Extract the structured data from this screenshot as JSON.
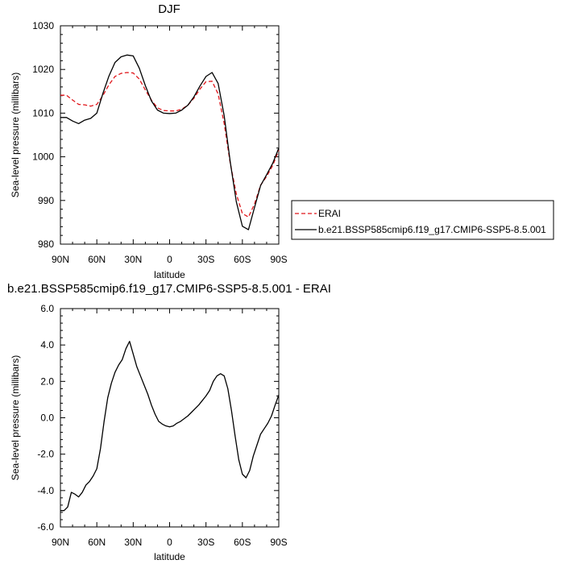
{
  "chart_data": [
    {
      "type": "line",
      "title": "DJF",
      "xlabel": "latitude",
      "ylabel": "Sea-level pressure (millibars)",
      "xlim": [
        90,
        -90
      ],
      "ylim": [
        980,
        1030
      ],
      "xticks": [
        90,
        60,
        30,
        0,
        -30,
        -60,
        -90
      ],
      "xtick_labels": [
        "90N",
        "60N",
        "30N",
        "0",
        "30S",
        "60S",
        "90S"
      ],
      "yticks": [
        980,
        990,
        1000,
        1010,
        1020,
        1030
      ],
      "ytick_labels": [
        "980",
        "990",
        "1000",
        "1010",
        "1020",
        "1030"
      ],
      "grid": false,
      "legend": {
        "placement": "right"
      },
      "series": [
        {
          "name": "ERAI",
          "color": "#e0161b",
          "dash": "dashed",
          "x": [
            90,
            85,
            80,
            75,
            70,
            65,
            60,
            55,
            50,
            45,
            40,
            35,
            30,
            25,
            20,
            15,
            10,
            5,
            0,
            -5,
            -10,
            -15,
            -20,
            -25,
            -30,
            -35,
            -40,
            -45,
            -50,
            -55,
            -60,
            -65,
            -70,
            -75,
            -80,
            -85,
            -90
          ],
          "y": [
            1014.1,
            1014.1,
            1013.0,
            1012.0,
            1011.9,
            1011.6,
            1012.0,
            1014.0,
            1016.5,
            1018.4,
            1019.1,
            1019.3,
            1019.2,
            1017.8,
            1015.3,
            1013.0,
            1011.2,
            1010.6,
            1010.5,
            1010.5,
            1010.9,
            1011.8,
            1013.4,
            1015.5,
            1017.2,
            1017.3,
            1014.4,
            1007.6,
            998.5,
            991.5,
            987.0,
            986.2,
            989.2,
            993.5,
            995.5,
            998.0,
            1001.5
          ]
        },
        {
          "name": "b.e21.BSSP585cmip6.f19_g17.CMIP6-SSP5-8.5.001",
          "color": "#000000",
          "dash": "solid",
          "x": [
            90,
            85,
            80,
            75,
            70,
            65,
            60,
            55,
            50,
            45,
            40,
            35,
            30,
            25,
            20,
            15,
            10,
            5,
            0,
            -5,
            -10,
            -15,
            -20,
            -25,
            -30,
            -35,
            -40,
            -45,
            -50,
            -55,
            -60,
            -65,
            -70,
            -75,
            -80,
            -85,
            -90
          ],
          "y": [
            1009.0,
            1009.0,
            1008.2,
            1007.6,
            1008.4,
            1008.8,
            1010.0,
            1014.5,
            1018.5,
            1021.6,
            1022.9,
            1023.3,
            1023.1,
            1020.3,
            1016.3,
            1012.8,
            1010.7,
            1010.0,
            1009.9,
            1010.0,
            1010.7,
            1011.8,
            1013.7,
            1016.2,
            1018.4,
            1019.3,
            1016.8,
            1009.4,
            998.8,
            989.7,
            984.1,
            983.3,
            988.4,
            993.4,
            995.9,
            998.5,
            1002.0
          ]
        }
      ]
    },
    {
      "type": "line",
      "title": "b.e21.BSSP585cmip6.f19_g17.CMIP6-SSP5-8.5.001 - ERAI",
      "xlabel": "latitude",
      "ylabel": "Sea-level pressure (millibars)",
      "xlim": [
        90,
        -90
      ],
      "ylim": [
        -6.0,
        6.0
      ],
      "xticks": [
        90,
        60,
        30,
        0,
        -30,
        -60,
        -90
      ],
      "xtick_labels": [
        "90N",
        "60N",
        "30N",
        "0",
        "30S",
        "60S",
        "90S"
      ],
      "yticks": [
        -6.0,
        -4.0,
        -2.0,
        0.0,
        2.0,
        4.0,
        6.0
      ],
      "ytick_labels": [
        "-6.0",
        "-4.0",
        "-2.0",
        "0.0",
        "2.0",
        "4.0",
        "6.0"
      ],
      "grid": false,
      "series": [
        {
          "color": "#000000",
          "dash": "solid",
          "x": [
            90,
            87,
            84,
            81,
            78,
            75,
            72,
            69,
            66,
            63,
            60,
            57,
            54,
            51,
            48,
            45,
            42,
            39,
            36,
            33,
            30,
            27,
            24,
            21,
            18,
            15,
            12,
            9,
            6,
            3,
            0,
            -3,
            -6,
            -9,
            -12,
            -15,
            -18,
            -21,
            -24,
            -27,
            -30,
            -33,
            -36,
            -39,
            -42,
            -45,
            -48,
            -51,
            -54,
            -57,
            -60,
            -63,
            -66,
            -69,
            -72,
            -75,
            -78,
            -81,
            -84,
            -87,
            -90
          ],
          "y": [
            -5.1,
            -5.1,
            -4.9,
            -4.1,
            -4.2,
            -4.35,
            -4.1,
            -3.7,
            -3.5,
            -3.2,
            -2.8,
            -1.7,
            -0.2,
            1.1,
            1.9,
            2.5,
            2.9,
            3.2,
            3.8,
            4.2,
            3.5,
            2.8,
            2.3,
            1.8,
            1.3,
            0.7,
            0.2,
            -0.2,
            -0.35,
            -0.45,
            -0.5,
            -0.45,
            -0.3,
            -0.2,
            -0.05,
            0.1,
            0.3,
            0.5,
            0.7,
            0.95,
            1.2,
            1.5,
            2.0,
            2.3,
            2.42,
            2.3,
            1.6,
            0.4,
            -1.0,
            -2.3,
            -3.1,
            -3.3,
            -2.9,
            -2.1,
            -1.5,
            -0.9,
            -0.6,
            -0.3,
            0.1,
            0.7,
            1.25
          ]
        }
      ]
    }
  ]
}
